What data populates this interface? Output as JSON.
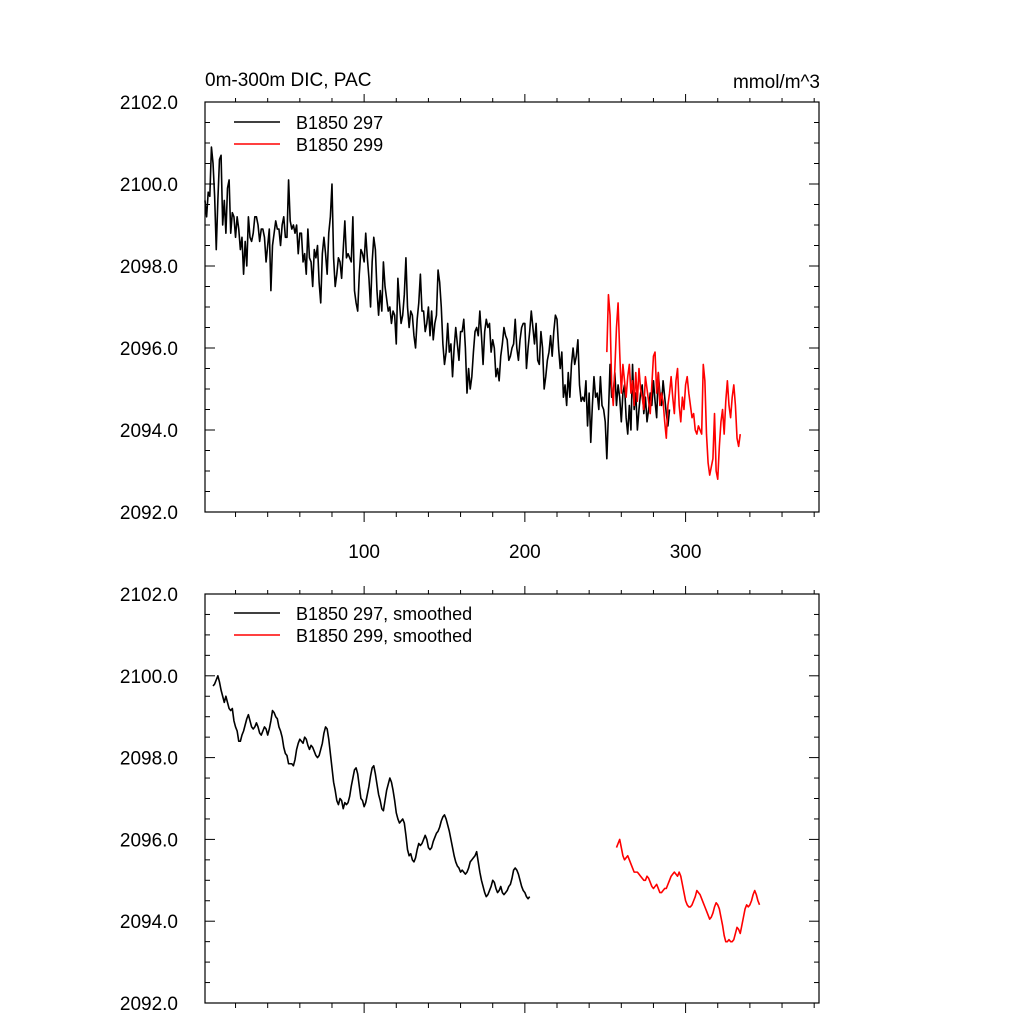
{
  "chart_data": [
    {
      "type": "line",
      "title": "0m-300m DIC, PAC",
      "units": "mmol/m^3",
      "xlim": [
        1,
        383
      ],
      "ylim": [
        2092,
        2102
      ],
      "x_ticks": [
        100,
        200,
        300
      ],
      "y_ticks": [
        2092,
        2094,
        2096,
        2098,
        2100,
        2102
      ],
      "y_tick_labels": [
        "2092.0",
        "2094.0",
        "2096.0",
        "2098.0",
        "2100.0",
        "2102.0"
      ],
      "legend": "top-left",
      "series": [
        {
          "name": "B1850 297",
          "color": "#000000",
          "x_start": 1,
          "values": [
            2099.6,
            2099.2,
            2099.8,
            2099.7,
            2100.9,
            2100.5,
            2099.7,
            2098.4,
            2099.6,
            2100.6,
            2100.7,
            2099.0,
            2099.6,
            2098.8,
            2099.9,
            2100.1,
            2098.8,
            2099.3,
            2099.2,
            2098.7,
            2099.2,
            2098.9,
            2098.4,
            2098.7,
            2097.8,
            2098.6,
            2098.0,
            2099.2,
            2098.7,
            2098.6,
            2098.8,
            2099.2,
            2099.2,
            2099.0,
            2098.6,
            2098.9,
            2098.9,
            2098.7,
            2098.1,
            2098.5,
            2098.9,
            2097.4,
            2098.5,
            2098.8,
            2099.1,
            2098.9,
            2098.9,
            2098.5,
            2099.0,
            2099.2,
            2098.7,
            2098.7,
            2100.1,
            2099.1,
            2098.9,
            2099.0,
            2098.8,
            2099.0,
            2098.3,
            2098.8,
            2098.8,
            2098.1,
            2098.3,
            2097.8,
            2098.9,
            2098.2,
            2098.1,
            2097.5,
            2098.4,
            2098.2,
            2098.5,
            2097.6,
            2097.1,
            2098.3,
            2098.7,
            2098.3,
            2097.8,
            2098.8,
            2099.2,
            2100.0,
            2098.2,
            2097.5,
            2097.8,
            2098.2,
            2098.1,
            2097.7,
            2098.4,
            2099.1,
            2098.2,
            2098.3,
            2098.2,
            2098.1,
            2099.2,
            2097.4,
            2097.1,
            2096.9,
            2097.8,
            2098.4,
            2098.3,
            2098.1,
            2098.8,
            2098.2,
            2097.7,
            2097.0,
            2098.1,
            2098.7,
            2098.4,
            2097.4,
            2096.8,
            2097.4,
            2096.9,
            2098.1,
            2097.5,
            2097.2,
            2096.9,
            2097.0,
            2096.6,
            2096.9,
            2096.8,
            2096.1,
            2097.7,
            2097.1,
            2096.6,
            2096.8,
            2097.3,
            2098.2,
            2097.0,
            2096.5,
            2096.9,
            2096.8,
            2096.3,
            2096.0,
            2096.7,
            2097.1,
            2097.8,
            2096.9,
            2096.9,
            2096.4,
            2096.6,
            2097.0,
            2096.3,
            2096.9,
            2096.2,
            2096.6,
            2096.8,
            2097.9,
            2097.6,
            2097.0,
            2096.1,
            2095.6,
            2095.9,
            2096.6,
            2095.9,
            2096.1,
            2095.3,
            2096.0,
            2096.5,
            2096.1,
            2095.7,
            2096.4,
            2096.4,
            2096.7,
            2096.0,
            2094.9,
            2095.5,
            2095.0,
            2095.3,
            2095.9,
            2096.4,
            2096.5,
            2096.3,
            2096.9,
            2096.3,
            2095.6,
            2096.4,
            2096.7,
            2096.5,
            2096.6,
            2095.9,
            2096.2,
            2096.0,
            2095.3,
            2095.5,
            2095.2,
            2095.8,
            2096.1,
            2096.5,
            2096.3,
            2096.2,
            2095.7,
            2095.8,
            2096.0,
            2096.1,
            2096.7,
            2096.0,
            2095.7,
            2096.2,
            2096.5,
            2096.6,
            2096.6,
            2095.5,
            2096.0,
            2096.4,
            2096.9,
            2096.5,
            2096.1,
            2096.6,
            2095.7,
            2095.6,
            2096.4,
            2096.0,
            2095.0,
            2095.3,
            2095.7,
            2095.9,
            2096.3,
            2095.8,
            2096.4,
            2096.8,
            2096.7,
            2096.0,
            2095.5,
            2095.9,
            2094.8,
            2095.1,
            2094.6,
            2095.4,
            2094.8,
            2095.6,
            2096.0,
            2095.6,
            2095.8,
            2096.2,
            2095.1,
            2094.7,
            2094.8,
            2094.7,
            2095.2,
            2094.1,
            2094.9,
            2093.7,
            2094.6,
            2095.3,
            2094.8,
            2094.9,
            2094.5,
            2095.3,
            2094.6,
            2094.5,
            2094.2,
            2093.3,
            2094.4,
            2095.6,
            2094.8,
            2094.9,
            2095.4,
            2094.6,
            2095.1,
            2094.8,
            2094.2,
            2094.9,
            2095.1,
            2094.3,
            2093.9,
            2094.6,
            2094.0,
            2095.6,
            2094.5,
            2094.9,
            2094.0,
            2094.5,
            2094.9,
            2095.1,
            2094.4,
            2094.8,
            2094.2,
            2094.5,
            2094.9,
            2094.6,
            2095.2,
            2094.7,
            2094.3,
            2095.4,
            2094.9,
            2094.6,
            2095.2,
            2094.8,
            2094.4,
            2094.1,
            2094.5
          ]
        },
        {
          "name": "B1850 299",
          "color": "#ff0000",
          "x_start": 251,
          "values": [
            2095.9,
            2097.3,
            2096.8,
            2095.1,
            2094.6,
            2095.5,
            2096.5,
            2097.1,
            2095.9,
            2094.9,
            2095.6,
            2095.2,
            2094.8,
            2095.3,
            2095.6,
            2094.9,
            2095.2,
            2094.6,
            2095.4,
            2094.7,
            2095.5,
            2095.0,
            2094.8,
            2094.5,
            2095.3,
            2095.0,
            2094.7,
            2094.4,
            2095.1,
            2095.8,
            2095.9,
            2094.9,
            2095.4,
            2094.6,
            2094.9,
            2094.7,
            2094.2,
            2093.8,
            2094.6,
            2094.9,
            2095.3,
            2094.8,
            2094.4,
            2095.2,
            2095.5,
            2094.6,
            2094.2,
            2094.8,
            2094.5,
            2095.1,
            2095.3,
            2094.9,
            2094.6,
            2094.3,
            2094.4,
            2094.0,
            2093.9,
            2094.1,
            2094.0,
            2093.9,
            2095.6,
            2095.2,
            2093.9,
            2093.2,
            2092.9,
            2093.1,
            2093.3,
            2094.4,
            2093.0,
            2092.8,
            2093.6,
            2094.2,
            2094.5,
            2093.9,
            2094.7,
            2095.2,
            2094.6,
            2094.3,
            2094.8,
            2095.1,
            2094.6,
            2093.8,
            2093.6,
            2093.9
          ]
        }
      ]
    },
    {
      "type": "line",
      "title": "",
      "units": "",
      "xlim": [
        1,
        383
      ],
      "ylim": [
        2092,
        2102
      ],
      "x_ticks": [
        100,
        200,
        300
      ],
      "y_ticks": [
        2092,
        2094,
        2096,
        2098,
        2100,
        2102
      ],
      "y_tick_labels": [
        "2092.0",
        "2094.0",
        "2096.0",
        "2098.0",
        "2100.0",
        "2102.0"
      ],
      "legend": "top-left",
      "series": [
        {
          "name": "B1850 297, smoothed",
          "color": "#000000",
          "x_start": 6,
          "values": [
            2099.75,
            2099.8,
            2099.9,
            2100.0,
            2099.85,
            2099.65,
            2099.5,
            2099.35,
            2099.5,
            2099.35,
            2099.2,
            2099.15,
            2099.2,
            2098.9,
            2098.75,
            2098.65,
            2098.4,
            2098.4,
            2098.55,
            2098.65,
            2098.8,
            2098.95,
            2099.05,
            2098.9,
            2098.75,
            2098.7,
            2098.75,
            2098.85,
            2098.75,
            2098.6,
            2098.55,
            2098.65,
            2098.75,
            2098.7,
            2098.55,
            2098.7,
            2098.9,
            2099.15,
            2099.1,
            2099.0,
            2098.95,
            2098.75,
            2098.65,
            2098.5,
            2098.25,
            2098.1,
            2098.05,
            2097.85,
            2097.85,
            2097.85,
            2097.8,
            2097.95,
            2098.2,
            2098.35,
            2098.45,
            2098.4,
            2098.35,
            2098.5,
            2098.45,
            2098.3,
            2098.2,
            2098.3,
            2098.25,
            2098.15,
            2098.05,
            2098.0,
            2098.05,
            2098.2,
            2098.35,
            2098.6,
            2098.75,
            2098.7,
            2098.45,
            2098.1,
            2097.75,
            2097.4,
            2097.2,
            2096.95,
            2096.85,
            2097.0,
            2096.95,
            2096.75,
            2096.9,
            2096.85,
            2096.9,
            2097.05,
            2097.3,
            2097.5,
            2097.7,
            2097.75,
            2097.6,
            2097.3,
            2097.0,
            2096.95,
            2096.8,
            2096.9,
            2097.1,
            2097.3,
            2097.55,
            2097.75,
            2097.8,
            2097.6,
            2097.35,
            2097.1,
            2096.95,
            2096.75,
            2096.7,
            2096.95,
            2097.2,
            2097.35,
            2097.5,
            2097.4,
            2097.2,
            2096.95,
            2096.65,
            2096.5,
            2096.4,
            2096.45,
            2096.5,
            2096.4,
            2096.1,
            2095.75,
            2095.6,
            2095.65,
            2095.5,
            2095.45,
            2095.55,
            2095.75,
            2095.9,
            2095.85,
            2095.9,
            2096.0,
            2096.1,
            2096.0,
            2095.8,
            2095.75,
            2095.8,
            2095.95,
            2096.05,
            2096.15,
            2096.2,
            2096.3,
            2096.45,
            2096.55,
            2096.6,
            2096.5,
            2096.35,
            2096.2,
            2096.0,
            2095.8,
            2095.6,
            2095.45,
            2095.35,
            2095.3,
            2095.2,
            2095.25,
            2095.2,
            2095.15,
            2095.2,
            2095.3,
            2095.45,
            2095.5,
            2095.55,
            2095.6,
            2095.7,
            2095.45,
            2095.2,
            2095.0,
            2094.85,
            2094.7,
            2094.6,
            2094.65,
            2094.75,
            2094.85,
            2095.0,
            2094.95,
            2094.8,
            2094.7,
            2094.75,
            2094.85,
            2094.7,
            2094.65,
            2094.7,
            2094.75,
            2094.85,
            2094.9,
            2095.05,
            2095.25,
            2095.3,
            2095.25,
            2095.15,
            2095.0,
            2094.85,
            2094.75,
            2094.7,
            2094.6,
            2094.55,
            2094.6
          ]
        },
        {
          "name": "B1850 299, smoothed",
          "color": "#ff0000",
          "x_start": 257,
          "values": [
            2095.8,
            2095.9,
            2096.0,
            2095.8,
            2095.6,
            2095.5,
            2095.55,
            2095.6,
            2095.5,
            2095.4,
            2095.3,
            2095.2,
            2095.2,
            2095.2,
            2095.15,
            2095.1,
            2095.05,
            2095.0,
            2095.0,
            2095.1,
            2095.05,
            2094.95,
            2094.85,
            2094.8,
            2094.85,
            2094.9,
            2094.8,
            2094.7,
            2094.7,
            2094.75,
            2094.8,
            2094.8,
            2094.9,
            2095.0,
            2095.1,
            2095.15,
            2095.2,
            2095.15,
            2095.1,
            2095.2,
            2095.1,
            2094.9,
            2094.7,
            2094.5,
            2094.4,
            2094.35,
            2094.35,
            2094.4,
            2094.5,
            2094.6,
            2094.75,
            2094.7,
            2094.65,
            2094.55,
            2094.45,
            2094.35,
            2094.25,
            2094.15,
            2094.05,
            2094.1,
            2094.2,
            2094.35,
            2094.45,
            2094.4,
            2094.3,
            2094.1,
            2093.9,
            2093.65,
            2093.5,
            2093.5,
            2093.55,
            2093.5,
            2093.5,
            2093.55,
            2093.7,
            2093.85,
            2093.8,
            2093.7,
            2093.9,
            2094.1,
            2094.3,
            2094.4,
            2094.35,
            2094.4,
            2094.5,
            2094.65,
            2094.75,
            2094.65,
            2094.5,
            2094.4
          ]
        }
      ]
    }
  ]
}
